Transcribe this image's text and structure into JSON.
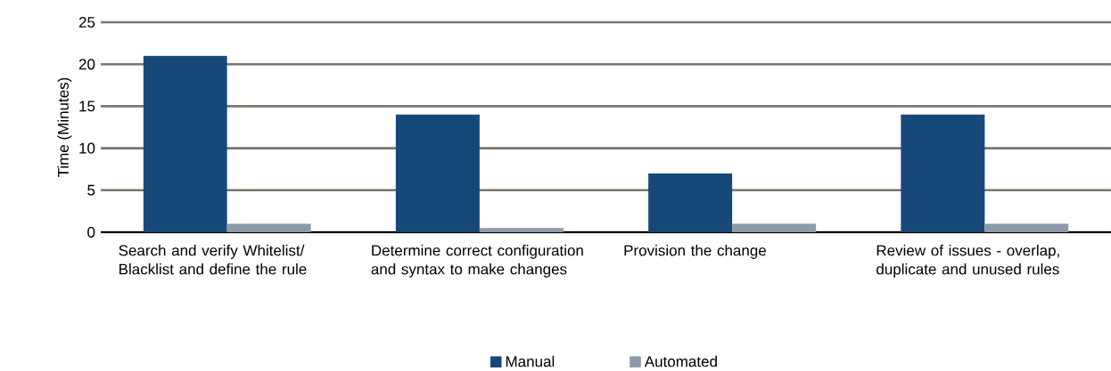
{
  "chart_data": {
    "type": "bar",
    "ylabel": "Time (Minutes)",
    "categories": [
      "Search and verify Whitelist/ Blacklist and define the rule",
      "Determine correct configuration and syntax to make changes",
      "Provision the change",
      "Review of issues - overlap, duplicate and unused rules"
    ],
    "series": [
      {
        "name": "Manual",
        "color": "#17487a",
        "values": [
          21,
          14,
          7,
          14
        ]
      },
      {
        "name": "Automated",
        "color": "#8d9aaa",
        "values": [
          1,
          0.5,
          1,
          1
        ]
      }
    ],
    "ylim": [
      0,
      25
    ],
    "yticks": [
      0,
      5,
      10,
      15,
      20,
      25
    ],
    "grid": "y",
    "legend": "bottom"
  }
}
